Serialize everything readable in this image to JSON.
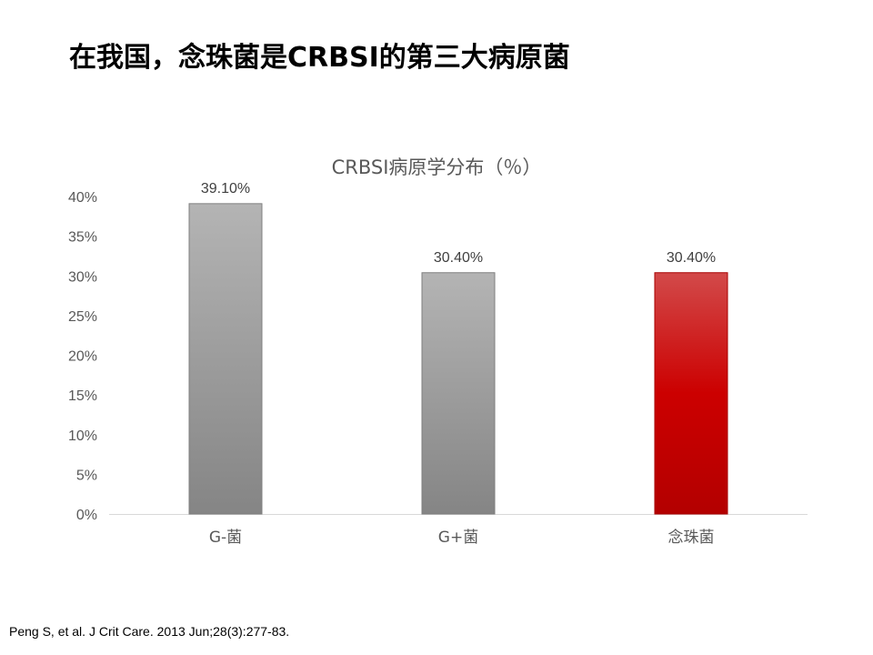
{
  "slide": {
    "title": "在我国，念珠菌是CRBSI的第三大病原菌",
    "citation": "Peng S, et al. J Crit Care. 2013 Jun;28(3):277-83."
  },
  "chart_data": {
    "type": "bar",
    "title": "CRBSI病原学分布（％）",
    "xlabel": "",
    "ylabel": "",
    "categories": [
      "G-菌",
      "G+菌",
      "念珠菌"
    ],
    "values": [
      39.1,
      30.4,
      30.4
    ],
    "value_labels": [
      "39.10%",
      "30.40%",
      "30.40%"
    ],
    "yticks": [
      "0%",
      "5%",
      "10%",
      "15%",
      "20%",
      "25%",
      "30%",
      "35%",
      "40%"
    ],
    "ylim": [
      0,
      40
    ],
    "grid": false,
    "legend": "none",
    "colors": {
      "gray_top": "#b4b4b4",
      "gray_bottom": "#858585",
      "red_top": "#d24a4a",
      "red_mid": "#cc0000",
      "red_bottom": "#b30000",
      "axis_line": "#d9d9d9",
      "tick_text": "#595959",
      "label_text": "#404040"
    }
  }
}
